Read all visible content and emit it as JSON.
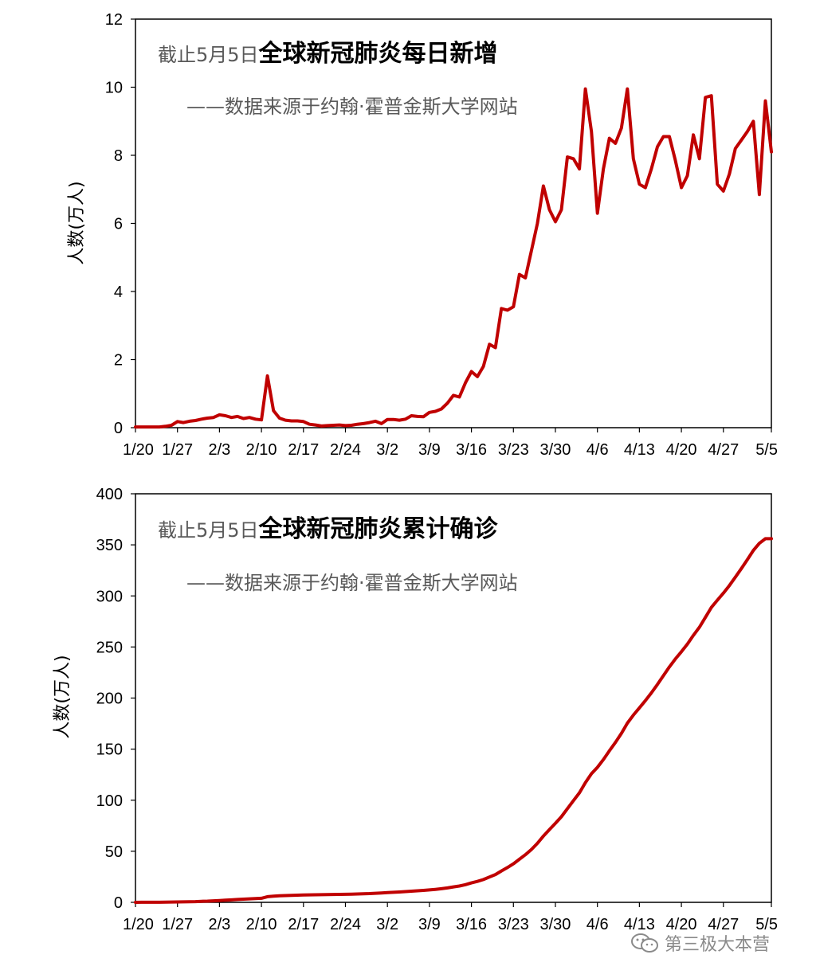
{
  "watermark": "第三极大本营",
  "charts": [
    {
      "id": "chart-top",
      "title_prefix": "截止5月5日",
      "title_main": "全球新冠肺炎每日新增",
      "subtitle": "——数据来源于约翰·霍普金斯大学网站",
      "ylabel": "人数(万人)",
      "line_color": "#c00000"
    },
    {
      "id": "chart-bottom",
      "title_prefix": "截止5月5日",
      "title_main": "全球新冠肺炎累计确诊",
      "subtitle": "——数据来源于约翰·霍普金斯大学网站",
      "ylabel": "人数(万人)",
      "line_color": "#c00000"
    }
  ],
  "chart_data": [
    {
      "type": "line",
      "title": "截止5月5日全球新冠肺炎每日新增",
      "subtitle": "——数据来源于约翰·霍普金斯大学网站",
      "xlabel": "",
      "ylabel": "人数(万人)",
      "x_start": "1/20",
      "x_end": "5/5",
      "x_ticks": [
        "1/20",
        "1/27",
        "2/3",
        "2/10",
        "2/17",
        "2/24",
        "3/2",
        "3/9",
        "3/16",
        "3/23",
        "3/30",
        "4/6",
        "4/13",
        "4/20",
        "4/27",
        "5/5"
      ],
      "y_ticks": [
        0,
        2,
        4,
        6,
        8,
        10,
        12
      ],
      "ylim": [
        0,
        12
      ],
      "grid": false,
      "legend": "none",
      "series": [
        {
          "color": "#c00000",
          "values": [
            0.02,
            0.02,
            0.02,
            0.02,
            0.02,
            0.04,
            0.07,
            0.18,
            0.15,
            0.19,
            0.21,
            0.25,
            0.28,
            0.3,
            0.38,
            0.35,
            0.3,
            0.33,
            0.27,
            0.3,
            0.25,
            0.23,
            1.52,
            0.5,
            0.28,
            0.22,
            0.2,
            0.2,
            0.18,
            0.1,
            0.08,
            0.05,
            0.06,
            0.07,
            0.08,
            0.06,
            0.07,
            0.1,
            0.12,
            0.15,
            0.19,
            0.12,
            0.24,
            0.24,
            0.22,
            0.25,
            0.35,
            0.33,
            0.32,
            0.45,
            0.48,
            0.55,
            0.72,
            0.95,
            0.9,
            1.32,
            1.65,
            1.5,
            1.8,
            2.45,
            2.35,
            3.5,
            3.45,
            3.55,
            4.5,
            4.4,
            5.2,
            6.0,
            7.1,
            6.4,
            6.05,
            6.4,
            7.95,
            7.9,
            7.6,
            9.95,
            8.7,
            6.3,
            7.6,
            8.5,
            8.35,
            8.8,
            9.95,
            7.9,
            7.15,
            7.05,
            7.6,
            8.25,
            8.55,
            8.55,
            7.85,
            7.05,
            7.4,
            8.6,
            7.9,
            9.7,
            9.75,
            7.15,
            6.95,
            7.45,
            8.2,
            8.45,
            8.7,
            9.0,
            6.85,
            9.6,
            8.1
          ]
        }
      ]
    },
    {
      "type": "line",
      "title": "截止5月5日全球新冠肺炎累计确诊",
      "subtitle": "——数据来源于约翰·霍普金斯大学网站",
      "xlabel": "",
      "ylabel": "人数(万人)",
      "x_start": "1/20",
      "x_end": "5/5",
      "x_ticks": [
        "1/20",
        "1/27",
        "2/3",
        "2/10",
        "2/17",
        "2/24",
        "3/2",
        "3/9",
        "3/16",
        "3/23",
        "3/30",
        "4/6",
        "4/13",
        "4/20",
        "4/27",
        "5/5"
      ],
      "y_ticks": [
        0,
        50,
        100,
        150,
        200,
        250,
        300,
        350,
        400
      ],
      "ylim": [
        0,
        400
      ],
      "grid": false,
      "legend": "none",
      "series": [
        {
          "color": "#c00000",
          "values": [
            0.03,
            0.05,
            0.07,
            0.1,
            0.1,
            0.2,
            0.3,
            0.4,
            0.5,
            0.6,
            0.7,
            1.0,
            1.2,
            1.5,
            1.8,
            2.1,
            2.4,
            2.8,
            3.1,
            3.4,
            3.7,
            4.0,
            5.5,
            6.0,
            6.4,
            6.6,
            6.8,
            7.0,
            7.2,
            7.3,
            7.4,
            7.5,
            7.6,
            7.7,
            7.8,
            7.9,
            8.0,
            8.2,
            8.4,
            8.6,
            8.9,
            9.2,
            9.5,
            9.8,
            10.1,
            10.5,
            10.9,
            11.3,
            11.7,
            12.2,
            12.7,
            13.3,
            14.1,
            15.1,
            16.0,
            17.3,
            19.0,
            20.5,
            22.3,
            24.8,
            27.2,
            30.7,
            34.1,
            37.7,
            42.2,
            46.6,
            51.8,
            57.8,
            64.9,
            71.3,
            77.4,
            83.8,
            91.7,
            99.6,
            107.2,
            117.2,
            125.9,
            132.2,
            139.8,
            148.3,
            156.6,
            165.4,
            175.4,
            183.3,
            190.4,
            197.5,
            205.1,
            213.3,
            221.9,
            230.5,
            238.3,
            245.4,
            252.8,
            261.4,
            269.3,
            279.0,
            288.7,
            295.8,
            302.8,
            310.2,
            318.4,
            326.9,
            335.6,
            344.6,
            351.5,
            356.0,
            356.0
          ]
        }
      ]
    }
  ]
}
